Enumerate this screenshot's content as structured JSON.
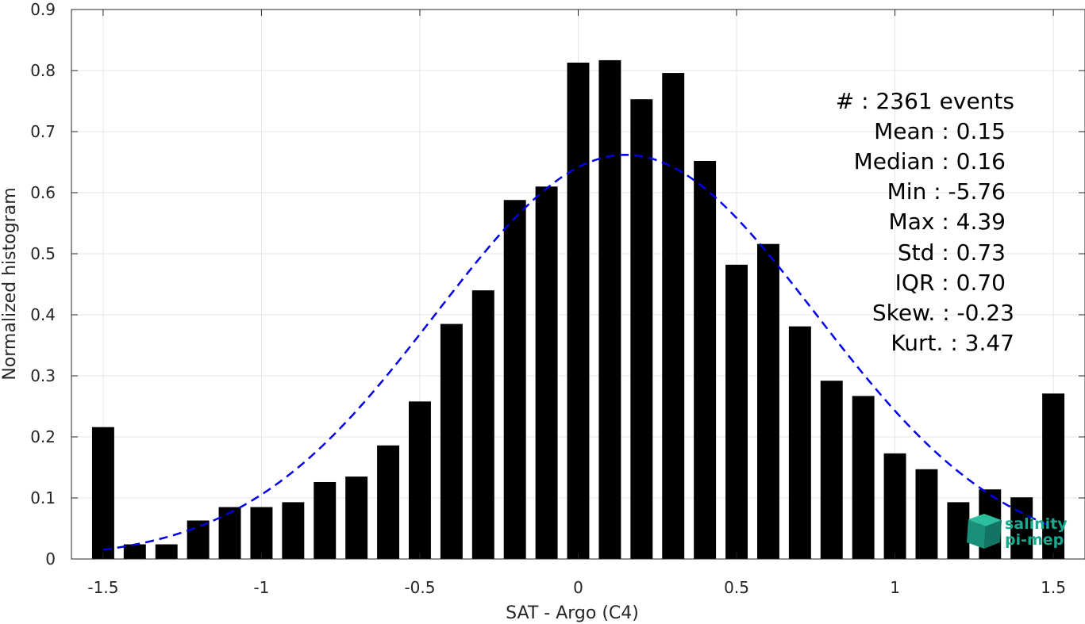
{
  "chart_data": {
    "type": "bar",
    "xlabel": "SAT - Argo (C4)",
    "ylabel": "Normalized histogram",
    "xlim": [
      -1.6,
      1.6
    ],
    "ylim": [
      0,
      0.9
    ],
    "xticks": [
      "-1.5",
      "-1",
      "-0.5",
      "0",
      "0.5",
      "1",
      "1.5"
    ],
    "xtick_values": [
      -1.5,
      -1,
      -0.5,
      0,
      0.5,
      1,
      1.5
    ],
    "yticks": [
      "0",
      "0.1",
      "0.2",
      "0.3",
      "0.4",
      "0.5",
      "0.6",
      "0.7",
      "0.8",
      "0.9"
    ],
    "ytick_values": [
      0,
      0.1,
      0.2,
      0.3,
      0.4,
      0.5,
      0.6,
      0.7,
      0.8,
      0.9
    ],
    "grid": true,
    "bar_width": 0.07,
    "bar_color": "#000000",
    "bars": {
      "x": [
        -1.5,
        -1.4,
        -1.3,
        -1.2,
        -1.1,
        -1.0,
        -0.9,
        -0.8,
        -0.7,
        -0.6,
        -0.5,
        -0.4,
        -0.3,
        -0.2,
        -0.1,
        0.0,
        0.1,
        0.2,
        0.3,
        0.4,
        0.5,
        0.6,
        0.7,
        0.8,
        0.9,
        1.0,
        1.1,
        1.2,
        1.3,
        1.4,
        1.5
      ],
      "values": [
        0.216,
        0.024,
        0.024,
        0.063,
        0.085,
        0.085,
        0.093,
        0.126,
        0.135,
        0.186,
        0.258,
        0.385,
        0.44,
        0.588,
        0.61,
        0.813,
        0.817,
        0.753,
        0.796,
        0.652,
        0.482,
        0.516,
        0.381,
        0.292,
        0.267,
        0.173,
        0.147,
        0.093,
        0.114,
        0.101,
        0.271
      ]
    },
    "fit_curve": {
      "kind": "gaussian",
      "mean": 0.15,
      "std": 0.6,
      "peak": 0.662,
      "x_range": [
        -1.5,
        1.5
      ],
      "color": "#0000e6",
      "style": "dashed"
    }
  },
  "stats": {
    "events": "#  : 2361 events",
    "mean": "Mean : 0.15",
    "median": "Median : 0.16",
    "min": "Min : -5.76",
    "max": "Max : 4.39",
    "std": "Std : 0.73",
    "iqr": "IQR : 0.70",
    "skew": "Skew. : -0.23",
    "kurt": "Kurt. : 3.47"
  },
  "logo": {
    "line1": "salinity",
    "line2": "pi-mep",
    "color": "#1aa88f"
  }
}
